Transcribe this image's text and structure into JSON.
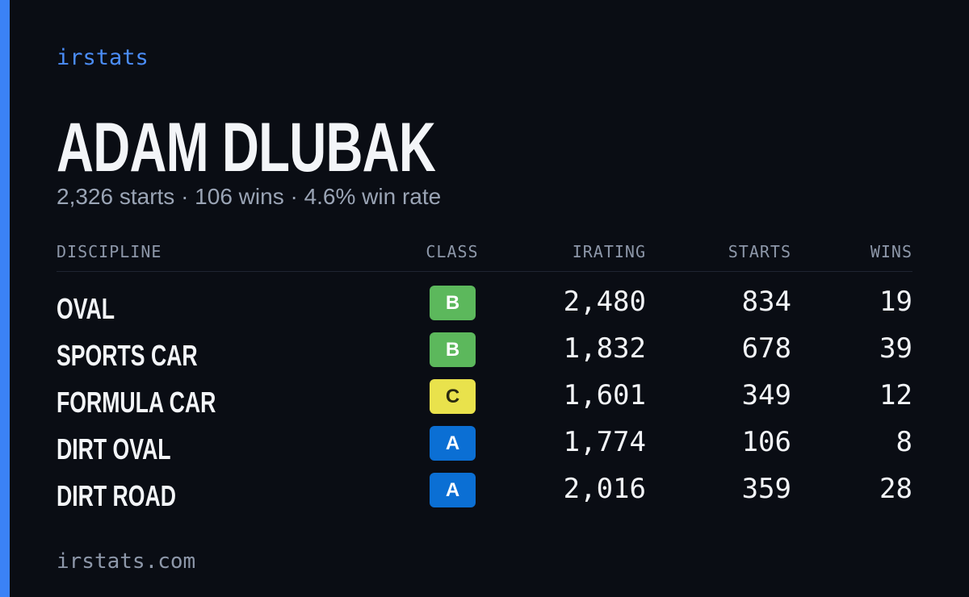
{
  "header": {
    "brand": "irstats"
  },
  "player": {
    "name": "ADAM DLUBAK",
    "summary": "2,326 starts · 106 wins · 4.6% win rate"
  },
  "table": {
    "columns": [
      "DISCIPLINE",
      "CLASS",
      "IRATING",
      "STARTS",
      "WINS"
    ],
    "class_colors": {
      "A": "#0b6fd4",
      "B": "#5cb85c",
      "C": "#e9e24c"
    },
    "rows": [
      [
        "OVAL",
        "B",
        "2,480",
        "834",
        "19"
      ],
      [
        "SPORTS CAR",
        "B",
        "1,832",
        "678",
        "39"
      ],
      [
        "FORMULA CAR",
        "C",
        "1,601",
        "349",
        "12"
      ],
      [
        "DIRT OVAL",
        "A",
        "1,774",
        "106",
        "8"
      ],
      [
        "DIRT ROAD",
        "A",
        "2,016",
        "359",
        "28"
      ]
    ]
  },
  "footer": {
    "url": "irstats.com"
  }
}
